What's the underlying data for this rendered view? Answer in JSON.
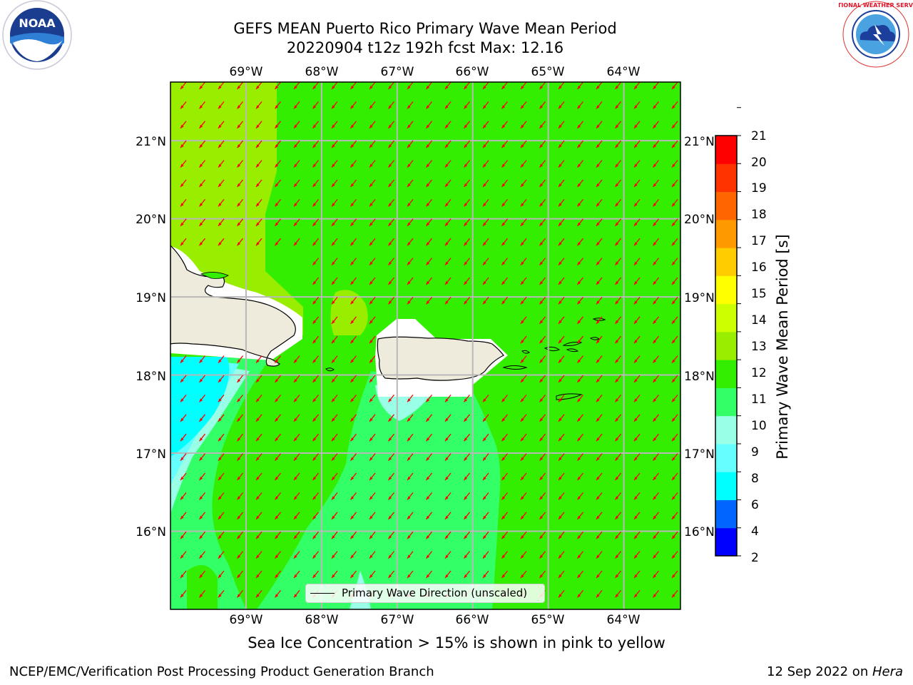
{
  "title": {
    "line1": "GEFS MEAN Puerto Rico Primary Wave Mean Period",
    "line2": "20220904 t12z 192h fcst   Max: 12.16"
  },
  "logos": {
    "noaa_text": "NOAA",
    "nws_text": "NATIONAL WEATHER SERVICE"
  },
  "map": {
    "lon_labels": [
      "69°W",
      "68°W",
      "67°W",
      "66°W",
      "65°W",
      "64°W"
    ],
    "lat_labels": [
      "21°N",
      "20°N",
      "19°N",
      "18°N",
      "17°N",
      "16°N"
    ],
    "lon_values": [
      -69,
      -68,
      -67,
      -66,
      -65,
      -64
    ],
    "lat_values": [
      21,
      20,
      19,
      18,
      17,
      16
    ],
    "extent": {
      "lon_min": -70,
      "lon_max": -63.25,
      "lat_min": 15,
      "lat_max": 21.75
    },
    "arrow_color": "#ff0000",
    "arrow_direction": "northeast-to-southwest (waves from NE)"
  },
  "colorbar": {
    "title": "Primary Wave Mean Period [s]",
    "ticks": [
      "2",
      "4",
      "6",
      "8",
      "9",
      "10",
      "11",
      "12",
      "13",
      "14",
      "15",
      "16",
      "17",
      "18",
      "19",
      "20",
      "21"
    ],
    "colors": [
      "#0000ff",
      "#0066ff",
      "#00ffff",
      "#66ffff",
      "#99ffe6",
      "#33ff66",
      "#33ee00",
      "#99ee00",
      "#ccff00",
      "#ffff00",
      "#ffcc00",
      "#ff9900",
      "#ff6600",
      "#ff3300",
      "#ff0000"
    ]
  },
  "legend": {
    "label": "Primary Wave Direction (unscaled)"
  },
  "notes": {
    "ice": "Sea Ice Concentration > 15% is shown in pink to yellow",
    "footer_left": "NCEP/EMC/Verification Post Processing Product Generation Branch",
    "footer_date": "12 Sep 2022 on ",
    "footer_machine": "Hera"
  }
}
